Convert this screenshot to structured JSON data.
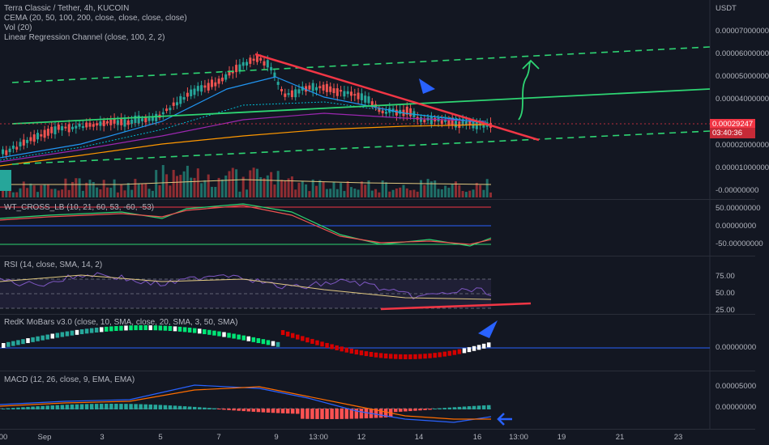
{
  "header": {
    "symbol": "Terra Classic / Tether, 4h, KUCOIN",
    "cema": "CEMA (20, 50, 100, 200, close, close, close, close)",
    "vol": "Vol (20)",
    "lrc": "Linear Regression Channel (close, 100, 2, 2)"
  },
  "price_axis": {
    "currency": "USDT",
    "labels": [
      "0.00007000000",
      "0.00006000000",
      "0.00005000000",
      "0.00004000000",
      "0.00002000000",
      "0.00001000000",
      "-0.00000000"
    ],
    "last_price": "0.00029247",
    "countdown": "03:40:36"
  },
  "panes": {
    "wt": {
      "title": "WT_CROSS_LB (10, 21, 60, 53, -60, -53)",
      "labels": [
        "50.00000000",
        "0.00000000",
        "-50.00000000"
      ]
    },
    "rsi": {
      "title": "RSI (14, close, SMA, 14, 2)",
      "labels": [
        "75.00",
        "50.00",
        "25.00"
      ]
    },
    "mobars": {
      "title": "RedK MoBars v3.0 (close, 10, SMA, close, 20, SMA, 3, 50, SMA)",
      "labels": [
        "0.00000000"
      ]
    },
    "macd": {
      "title": "MACD (12, 26, close, 9, EMA, EMA)",
      "labels": [
        "0.00005000",
        "0.00000000"
      ]
    }
  },
  "time_axis": {
    "labels": [
      "Sep",
      "3",
      "5",
      "7",
      "9",
      "13:00",
      "12",
      "14",
      "16",
      "13:00",
      "19",
      "21",
      "23"
    ],
    "left_cut": "00"
  },
  "colors": {
    "bg": "#131722",
    "up": "#26a69a",
    "down": "#ef5350",
    "trendline": "#f23645",
    "channel": "#2ed573",
    "arrow_blue": "#2962ff"
  }
}
